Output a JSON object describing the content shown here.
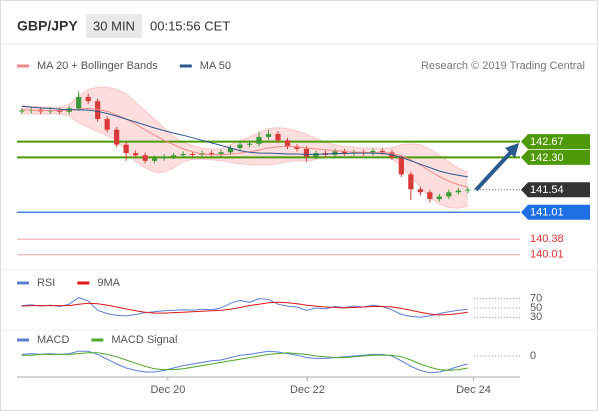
{
  "header": {
    "symbol": "GBP/JPY",
    "timeframe": "30 MIN",
    "time": "00:15:56 CET"
  },
  "credit": "Research © 2019 Trading Central",
  "chart_data": {
    "type": "candlestick",
    "x": [
      0,
      1,
      2,
      3,
      4,
      5,
      6,
      7,
      8,
      9,
      10,
      11,
      12,
      13,
      14,
      15,
      16,
      17,
      18,
      19,
      20,
      21,
      22,
      23,
      24,
      25,
      26,
      27,
      28,
      29,
      30,
      31,
      32,
      33,
      34,
      35,
      36,
      37,
      38,
      39,
      40,
      41,
      42,
      43,
      44,
      45,
      46,
      47
    ],
    "xlim": [
      -0.5,
      52.5
    ],
    "xticks": [
      {
        "value": 15.4,
        "label": "Dec 20"
      },
      {
        "value": 30.1,
        "label": "Dec 22"
      },
      {
        "value": 47.6,
        "label": "Dec 24"
      }
    ],
    "ylim": [
      139.7,
      144.4
    ],
    "up_color": "#3a9a3a",
    "down_color": "#d83a3a",
    "open": [
      143.38,
      143.4,
      143.42,
      143.38,
      143.41,
      143.37,
      143.45,
      143.72,
      143.62,
      143.2,
      142.95,
      142.6,
      142.4,
      142.35,
      142.22,
      142.28,
      142.32,
      142.35,
      142.38,
      142.36,
      142.4,
      142.38,
      142.42,
      142.52,
      142.6,
      142.62,
      142.78,
      142.85,
      142.7,
      142.55,
      142.5,
      142.32,
      142.4,
      142.36,
      142.44,
      142.4,
      142.42,
      142.4,
      142.45,
      142.42,
      142.3,
      141.9,
      141.55,
      141.48,
      141.32,
      141.38,
      141.48,
      141.52
    ],
    "high": [
      143.46,
      143.48,
      143.48,
      143.47,
      143.47,
      143.51,
      143.85,
      143.8,
      143.68,
      143.26,
      143.01,
      142.66,
      142.46,
      142.41,
      142.34,
      142.38,
      142.41,
      142.44,
      142.44,
      142.46,
      142.46,
      142.48,
      142.58,
      142.66,
      142.68,
      142.9,
      142.95,
      142.91,
      142.76,
      142.61,
      142.56,
      142.46,
      142.46,
      142.5,
      142.5,
      142.48,
      142.48,
      142.51,
      142.51,
      142.48,
      142.36,
      141.96,
      141.61,
      141.54,
      141.44,
      141.54,
      141.58,
      141.6
    ],
    "low": [
      143.32,
      143.34,
      143.32,
      143.32,
      143.31,
      143.31,
      143.39,
      143.56,
      143.14,
      142.89,
      142.54,
      142.22,
      142.29,
      142.16,
      142.16,
      142.22,
      142.26,
      142.29,
      142.3,
      142.3,
      142.32,
      142.32,
      142.36,
      142.46,
      142.54,
      142.56,
      142.72,
      142.64,
      142.49,
      142.44,
      142.2,
      142.26,
      142.3,
      142.3,
      142.34,
      142.34,
      142.34,
      142.34,
      142.36,
      142.24,
      141.84,
      141.3,
      141.4,
      141.24,
      141.26,
      141.32,
      141.42,
      141.46
    ],
    "close": [
      143.4,
      143.42,
      143.38,
      143.41,
      143.37,
      143.45,
      143.72,
      143.62,
      143.2,
      142.95,
      142.6,
      142.4,
      142.35,
      142.22,
      142.28,
      142.32,
      142.35,
      142.38,
      142.36,
      142.4,
      142.38,
      142.42,
      142.52,
      142.6,
      142.62,
      142.78,
      142.85,
      142.7,
      142.55,
      142.5,
      142.32,
      142.4,
      142.36,
      142.44,
      142.4,
      142.42,
      142.4,
      142.45,
      142.42,
      142.3,
      141.9,
      141.55,
      141.48,
      141.32,
      141.38,
      141.48,
      141.52,
      141.54
    ],
    "series": [
      {
        "name": "MA 20 + Bollinger Bands",
        "color": "#f08a8a",
        "band_color": "#fbd3d3",
        "values": [
          143.42,
          143.41,
          143.4,
          143.4,
          143.4,
          143.41,
          143.43,
          143.45,
          143.43,
          143.38,
          143.3,
          143.2,
          143.08,
          142.95,
          142.82,
          142.7,
          142.6,
          142.5,
          142.43,
          142.38,
          142.36,
          142.36,
          142.38,
          142.4,
          142.43,
          142.47,
          142.52,
          142.55,
          142.56,
          142.55,
          142.52,
          142.5,
          142.48,
          142.46,
          142.44,
          142.42,
          142.42,
          142.41,
          142.41,
          142.4,
          142.34,
          142.24,
          142.12,
          141.98,
          141.85,
          141.74,
          141.66,
          141.6
        ],
        "upper": [
          143.52,
          143.5,
          143.49,
          143.48,
          143.48,
          143.55,
          143.75,
          143.9,
          143.95,
          143.95,
          143.9,
          143.8,
          143.6,
          143.4,
          143.2,
          143.0,
          142.8,
          142.65,
          142.58,
          142.52,
          142.5,
          142.5,
          142.6,
          142.7,
          142.78,
          142.88,
          142.98,
          143.0,
          142.98,
          142.92,
          142.85,
          142.75,
          142.66,
          142.6,
          142.56,
          142.54,
          142.53,
          142.52,
          142.52,
          142.53,
          142.6,
          142.62,
          142.6,
          142.5,
          142.35,
          142.2,
          142.05,
          141.95
        ],
        "lower": [
          143.32,
          143.32,
          143.31,
          143.32,
          143.32,
          143.27,
          143.11,
          143.0,
          142.9,
          142.8,
          142.7,
          142.45,
          142.2,
          142.05,
          141.95,
          141.95,
          142.05,
          142.2,
          142.25,
          142.26,
          142.24,
          142.22,
          142.18,
          142.15,
          142.13,
          142.12,
          142.12,
          142.15,
          142.2,
          142.22,
          142.2,
          142.25,
          142.3,
          142.32,
          142.33,
          142.32,
          142.31,
          142.3,
          142.3,
          142.27,
          142.08,
          141.84,
          141.6,
          141.36,
          141.2,
          141.12,
          141.1,
          141.15
        ]
      },
      {
        "name": "MA 50",
        "color": "#2d5a8c",
        "values": [
          143.5,
          143.48,
          143.46,
          143.45,
          143.43,
          143.42,
          143.42,
          143.41,
          143.38,
          143.33,
          143.27,
          143.2,
          143.13,
          143.06,
          142.99,
          142.93,
          142.87,
          142.82,
          142.76,
          142.7,
          142.64,
          142.58,
          142.52,
          142.46,
          142.42,
          142.4,
          142.4,
          142.39,
          142.38,
          142.38,
          142.37,
          142.37,
          142.38,
          142.39,
          142.39,
          142.4,
          142.4,
          142.4,
          142.39,
          142.36,
          142.3,
          142.22,
          142.14,
          142.06,
          141.98,
          141.92,
          141.88,
          141.84
        ]
      }
    ],
    "levels": {
      "values": [
        142.67,
        142.3,
        141.54,
        141.01,
        140.38,
        140.01
      ],
      "value_labels": [
        "142.67",
        "142.30",
        "141.54",
        "141.01",
        "140.38",
        "140.01"
      ],
      "colors": [
        "#4e9a06",
        "#4e9a06",
        "#333333",
        "#1f6fe5",
        "#e03030",
        "#e03030"
      ],
      "kinds": [
        "box",
        "box",
        "current",
        "box",
        "text",
        "text"
      ]
    },
    "indicators": [
      {
        "type": "line",
        "ylim": [
          20,
          84
        ],
        "yticks": [
          30,
          50,
          70
        ],
        "series": [
          {
            "name": "RSI",
            "color": "#5b7fd6",
            "values": [
              55,
              57,
              54,
              56,
              53,
              58,
              72,
              65,
              45,
              38,
              34,
              33,
              36,
              40,
              42,
              44,
              45,
              46,
              45,
              47,
              46,
              50,
              60,
              66,
              62,
              70,
              68,
              58,
              54,
              52,
              45,
              50,
              48,
              53,
              51,
              54,
              52,
              56,
              53,
              46,
              36,
              32,
              30,
              33,
              38,
              42,
              45,
              47
            ]
          },
          {
            "name": "9MA",
            "color": "#e01818",
            "values": [
              54,
              55,
              55,
              55,
              55,
              55,
              58,
              60,
              59,
              56,
              52,
              48,
              44,
              41,
              39,
              39,
              40,
              41,
              42,
              43,
              44,
              45,
              47,
              51,
              55,
              58,
              61,
              62,
              61,
              59,
              56,
              54,
              52,
              51,
              50,
              51,
              52,
              53,
              53,
              52,
              49,
              45,
              41,
              37,
              35,
              36,
              38,
              41
            ]
          }
        ]
      },
      {
        "type": "line",
        "ylim": [
          -0.25,
          0.1
        ],
        "yticks": [
          0
        ],
        "series": [
          {
            "name": "MACD",
            "color": "#5b7fd6",
            "values": [
              0.02,
              0.03,
              0.02,
              0.03,
              0.02,
              0.03,
              0.06,
              0.06,
              0.02,
              -0.04,
              -0.1,
              -0.15,
              -0.18,
              -0.2,
              -0.2,
              -0.18,
              -0.15,
              -0.12,
              -0.1,
              -0.08,
              -0.06,
              -0.05,
              -0.02,
              0.01,
              0.02,
              0.04,
              0.06,
              0.05,
              0.03,
              0.01,
              -0.02,
              -0.03,
              -0.03,
              -0.02,
              -0.01,
              0,
              0.01,
              0.02,
              0.02,
              0,
              -0.06,
              -0.13,
              -0.18,
              -0.21,
              -0.2,
              -0.17,
              -0.13,
              -0.1
            ]
          },
          {
            "name": "MACD Signal",
            "color": "#4fa82a",
            "values": [
              0.01,
              0.01,
              0.02,
              0.02,
              0.02,
              0.02,
              0.03,
              0.04,
              0.04,
              0.02,
              -0.01,
              -0.05,
              -0.09,
              -0.13,
              -0.16,
              -0.17,
              -0.17,
              -0.16,
              -0.14,
              -0.12,
              -0.1,
              -0.08,
              -0.06,
              -0.04,
              -0.02,
              0,
              0.02,
              0.03,
              0.04,
              0.03,
              0.02,
              0,
              -0.01,
              -0.02,
              -0.02,
              -0.01,
              0,
              0.01,
              0.01,
              0.01,
              -0.01,
              -0.05,
              -0.1,
              -0.14,
              -0.17,
              -0.18,
              -0.17,
              -0.15
            ]
          }
        ]
      }
    ]
  }
}
